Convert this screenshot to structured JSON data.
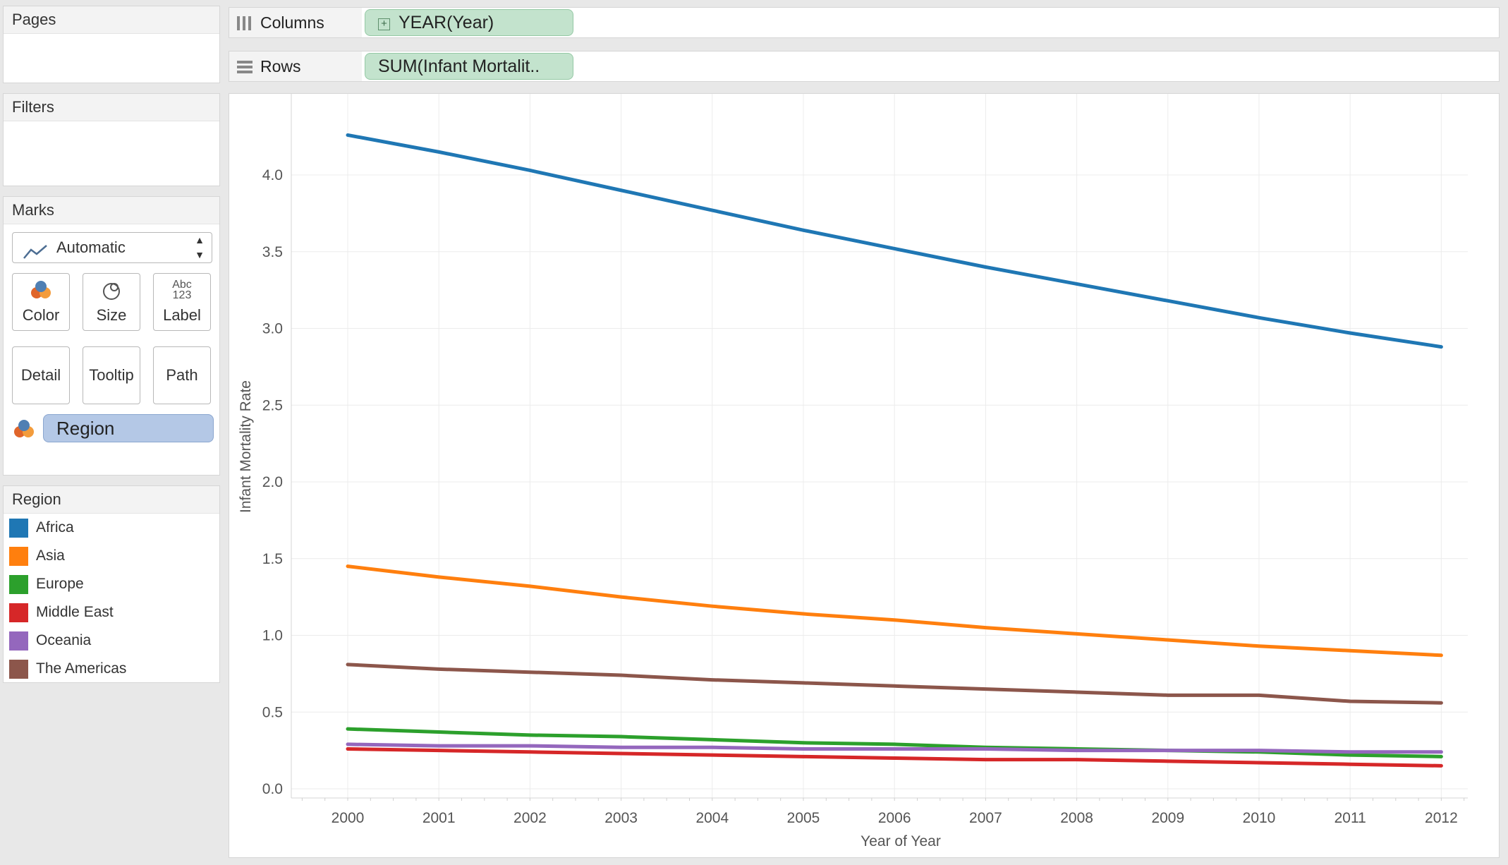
{
  "cards": {
    "pages_title": "Pages",
    "filters_title": "Filters",
    "marks_title": "Marks"
  },
  "marks": {
    "type_label": "Automatic",
    "buttons": {
      "color": "Color",
      "size": "Size",
      "label": "Label",
      "label_icon_top": "Abc",
      "label_icon_bottom": "123",
      "detail": "Detail",
      "tooltip": "Tooltip",
      "path": "Path"
    },
    "color_field": "Region"
  },
  "legend": {
    "title": "Region",
    "items": [
      {
        "label": "Africa",
        "color": "#1f77b4"
      },
      {
        "label": "Asia",
        "color": "#ff7f0e"
      },
      {
        "label": "Europe",
        "color": "#2ca02c"
      },
      {
        "label": "Middle East",
        "color": "#d62728"
      },
      {
        "label": "Oceania",
        "color": "#9467bd"
      },
      {
        "label": "The Americas",
        "color": "#8c564b"
      }
    ]
  },
  "shelves": {
    "columns_label": "Columns",
    "columns_pill": "YEAR(Year)",
    "rows_label": "Rows",
    "rows_pill": "SUM(Infant Mortalit.."
  },
  "chart_data": {
    "type": "line",
    "x": [
      2000,
      2001,
      2002,
      2003,
      2004,
      2005,
      2006,
      2007,
      2008,
      2009,
      2010,
      2011,
      2012
    ],
    "xlabel": "Year of Year",
    "ylabel": "Infant Mortality Rate",
    "ylim": [
      0,
      4.4
    ],
    "yticks": [
      0.0,
      0.5,
      1.0,
      1.5,
      2.0,
      2.5,
      3.0,
      3.5,
      4.0
    ],
    "grid": true,
    "legend_position": "left",
    "series": [
      {
        "name": "Africa",
        "color": "#1f77b4",
        "values": [
          4.26,
          4.15,
          4.03,
          3.9,
          3.77,
          3.64,
          3.52,
          3.4,
          3.29,
          3.18,
          3.07,
          2.97,
          2.88
        ]
      },
      {
        "name": "Asia",
        "color": "#ff7f0e",
        "values": [
          1.45,
          1.38,
          1.32,
          1.25,
          1.19,
          1.14,
          1.1,
          1.05,
          1.01,
          0.97,
          0.93,
          0.9,
          0.87
        ]
      },
      {
        "name": "Europe",
        "color": "#2ca02c",
        "values": [
          0.39,
          0.37,
          0.35,
          0.34,
          0.32,
          0.3,
          0.29,
          0.27,
          0.26,
          0.25,
          0.24,
          0.22,
          0.21
        ]
      },
      {
        "name": "Middle East",
        "color": "#d62728",
        "values": [
          0.26,
          0.25,
          0.24,
          0.23,
          0.22,
          0.21,
          0.2,
          0.19,
          0.19,
          0.18,
          0.17,
          0.16,
          0.15
        ]
      },
      {
        "name": "Oceania",
        "color": "#9467bd",
        "values": [
          0.29,
          0.28,
          0.28,
          0.27,
          0.27,
          0.26,
          0.26,
          0.26,
          0.25,
          0.25,
          0.25,
          0.24,
          0.24
        ]
      },
      {
        "name": "The Americas",
        "color": "#8c564b",
        "values": [
          0.81,
          0.78,
          0.76,
          0.74,
          0.71,
          0.69,
          0.67,
          0.65,
          0.63,
          0.61,
          0.61,
          0.57,
          0.56
        ]
      }
    ]
  }
}
